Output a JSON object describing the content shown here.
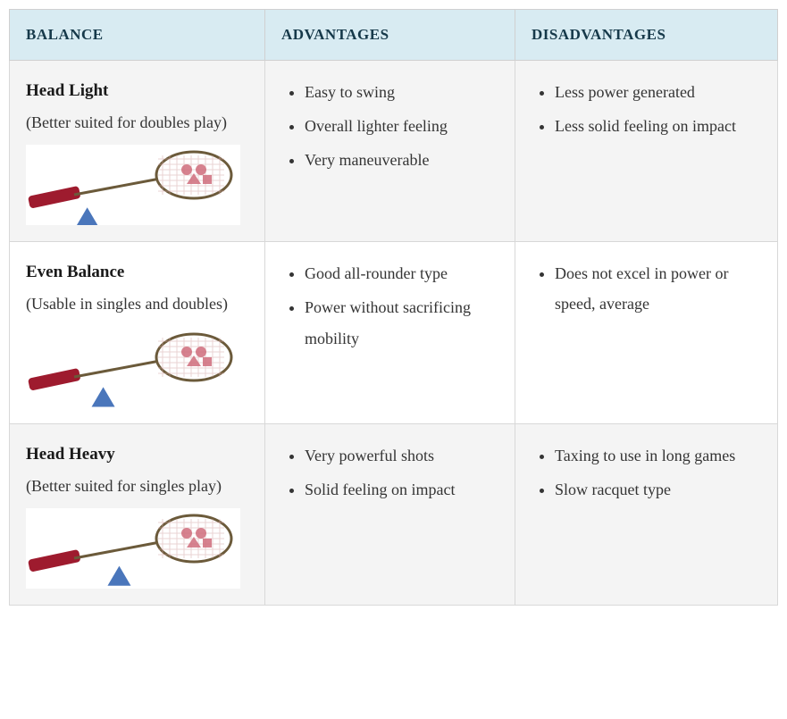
{
  "headers": {
    "balance": "BALANCE",
    "advantages": "ADVANTAGES",
    "disadvantages": "DISADVANTAGES"
  },
  "rows": [
    {
      "title": "Head Light",
      "subtitle": "(Better suited for doubles play)",
      "balance_point": 0.35,
      "advantages": [
        "Easy to swing",
        "Overall lighter feeling",
        "Very maneuverable"
      ],
      "disadvantages": [
        "Less power generated",
        "Less solid feeling on impact"
      ]
    },
    {
      "title": "Even Balance",
      "subtitle": "(Usable in singles and doubles)",
      "balance_point": 0.45,
      "advantages": [
        "Good all-rounder type",
        "Power without sacrificing mobility"
      ],
      "disadvantages": [
        "Does not excel in power or speed, average"
      ]
    },
    {
      "title": "Head Heavy",
      "subtitle": "(Better suited for singles play)",
      "balance_point": 0.55,
      "advantages": [
        "Very powerful shots",
        "Solid feeling on impact"
      ],
      "disadvantages": [
        "Taxing to use in long games",
        "Slow racquet type"
      ]
    }
  ],
  "style": {
    "header_bg": "#d8ebf2",
    "header_fg": "#16394a",
    "row_odd_bg": "#f4f4f4",
    "row_even_bg": "#ffffff",
    "border_color": "#d8d8d8",
    "text_color": "#343434",
    "title_color": "#1a1a1a",
    "racket_handle_color": "#9e1b2e",
    "racket_frame_color": "#6b5a3a",
    "racket_string_color": "#d7a8a8",
    "racket_logo_color": "#cf6d7c",
    "fulcrum_color": "#4a76bb",
    "fulcrum_size": 26
  }
}
